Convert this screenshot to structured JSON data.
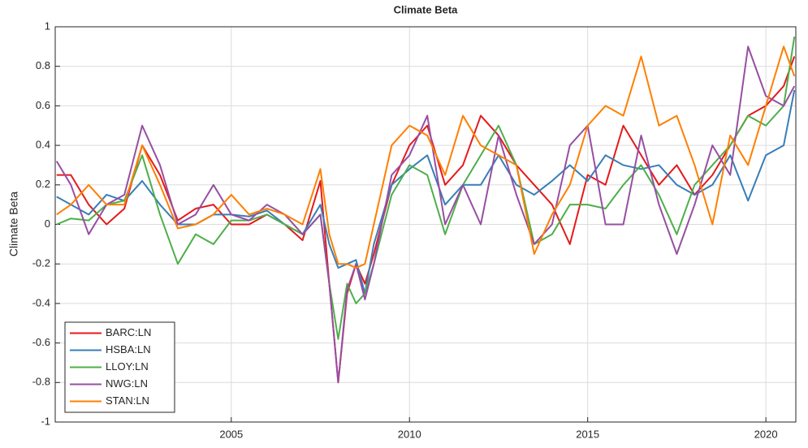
{
  "chart_data": {
    "type": "line",
    "title": "Climate Beta",
    "y_label": "Climate Beta",
    "x": [
      2000.1,
      2000.5,
      2001.0,
      2001.5,
      2002.0,
      2002.5,
      2003.0,
      2003.5,
      2004.0,
      2004.5,
      2005.0,
      2005.5,
      2006.0,
      2006.5,
      2007.0,
      2007.5,
      2007.75,
      2008.0,
      2008.25,
      2008.5,
      2008.75,
      2009.0,
      2009.5,
      2010.0,
      2010.5,
      2011.0,
      2011.5,
      2012.0,
      2012.5,
      2013.0,
      2013.5,
      2014.0,
      2014.5,
      2015.0,
      2015.5,
      2016.0,
      2016.5,
      2017.0,
      2017.5,
      2018.0,
      2018.5,
      2019.0,
      2019.5,
      2020.0,
      2020.5,
      2020.8
    ],
    "series": [
      {
        "name": "BARC:LN",
        "color": "#e41a1c",
        "values": [
          0.25,
          0.25,
          0.1,
          0.0,
          0.08,
          0.4,
          0.25,
          0.02,
          0.08,
          0.1,
          0.0,
          0.0,
          0.05,
          0.0,
          -0.08,
          0.22,
          -0.3,
          -0.8,
          -0.35,
          -0.2,
          -0.3,
          -0.15,
          0.2,
          0.4,
          0.5,
          0.2,
          0.3,
          0.55,
          0.45,
          0.3,
          0.2,
          0.1,
          -0.1,
          0.25,
          0.2,
          0.5,
          0.35,
          0.2,
          0.3,
          0.15,
          0.25,
          0.4,
          0.55,
          0.6,
          0.7,
          0.85
        ]
      },
      {
        "name": "HSBA:LN",
        "color": "#377eb8",
        "values": [
          0.14,
          0.1,
          0.05,
          0.15,
          0.12,
          0.22,
          0.1,
          0.0,
          0.0,
          0.05,
          0.05,
          0.04,
          0.07,
          0.0,
          -0.05,
          0.1,
          -0.1,
          -0.22,
          -0.2,
          -0.18,
          -0.35,
          -0.1,
          0.2,
          0.28,
          0.35,
          0.1,
          0.2,
          0.2,
          0.35,
          0.2,
          0.15,
          0.22,
          0.3,
          0.22,
          0.35,
          0.3,
          0.28,
          0.3,
          0.2,
          0.15,
          0.2,
          0.35,
          0.12,
          0.35,
          0.4,
          0.68
        ]
      },
      {
        "name": "LLOY:LN",
        "color": "#4daf4a",
        "values": [
          0.0,
          0.03,
          0.02,
          0.1,
          0.12,
          0.35,
          0.05,
          -0.2,
          -0.05,
          -0.1,
          0.02,
          0.02,
          0.05,
          0.0,
          -0.05,
          0.05,
          -0.3,
          -0.58,
          -0.3,
          -0.4,
          -0.35,
          -0.2,
          0.15,
          0.3,
          0.25,
          -0.05,
          0.2,
          0.35,
          0.5,
          0.3,
          -0.1,
          -0.05,
          0.1,
          0.1,
          0.08,
          0.2,
          0.3,
          0.15,
          -0.05,
          0.2,
          0.3,
          0.4,
          0.55,
          0.5,
          0.6,
          0.95
        ]
      },
      {
        "name": "NWG:LN",
        "color": "#984ea3",
        "values": [
          0.32,
          0.2,
          -0.05,
          0.1,
          0.15,
          0.5,
          0.3,
          0.0,
          0.05,
          0.2,
          0.05,
          0.02,
          0.1,
          0.05,
          -0.05,
          0.05,
          -0.3,
          -0.8,
          -0.33,
          -0.2,
          -0.38,
          -0.2,
          0.25,
          0.35,
          0.55,
          0.0,
          0.2,
          0.0,
          0.45,
          0.15,
          -0.1,
          0.0,
          0.4,
          0.5,
          0.0,
          0.0,
          0.45,
          0.1,
          -0.15,
          0.1,
          0.4,
          0.25,
          0.9,
          0.65,
          0.6,
          0.7
        ]
      },
      {
        "name": "STAN:LN",
        "color": "#ff7f00",
        "values": [
          0.05,
          0.1,
          0.2,
          0.1,
          0.1,
          0.4,
          0.2,
          -0.02,
          0.0,
          0.05,
          0.15,
          0.05,
          0.08,
          0.05,
          0.0,
          0.28,
          -0.05,
          -0.2,
          -0.2,
          -0.22,
          -0.2,
          0.0,
          0.4,
          0.5,
          0.45,
          0.25,
          0.55,
          0.4,
          0.35,
          0.3,
          -0.15,
          0.05,
          0.2,
          0.5,
          0.6,
          0.55,
          0.85,
          0.5,
          0.55,
          0.3,
          0.0,
          0.45,
          0.3,
          0.6,
          0.9,
          0.75
        ]
      }
    ],
    "xlim": [
      2000.06,
      2020.84
    ],
    "xticks": [
      2005,
      2010,
      2015,
      2020
    ],
    "ylim": [
      -1,
      1
    ],
    "yticks": [
      -1,
      -0.8,
      -0.6,
      -0.4,
      -0.2,
      0,
      0.2,
      0.4,
      0.6,
      0.8,
      1
    ],
    "grid": true,
    "legend": "southwest"
  }
}
